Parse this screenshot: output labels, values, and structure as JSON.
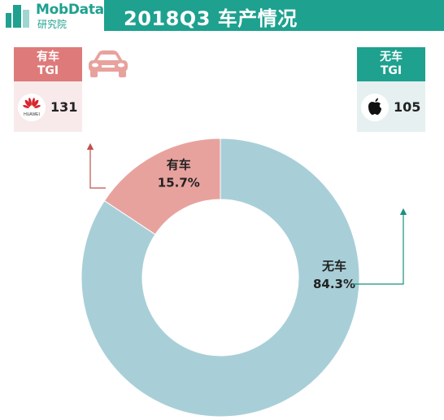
{
  "header": {
    "logo_brand": "MobData",
    "logo_sub": "研究院",
    "title": "2018Q3   车产情况"
  },
  "left_card": {
    "tag_line1": "有车",
    "tag_line2": "TGI",
    "brand_icon": "huawei-logo",
    "brand_text": "HUAWEI",
    "tgi_value": "131"
  },
  "right_card": {
    "tag_line1": "无车",
    "tag_line2": "TGI",
    "brand_icon": "apple-logo",
    "tgi_value": "105"
  },
  "colors": {
    "teal": "#1ea18f",
    "has_car": "#e8a29e",
    "no_car": "#a8cfd8",
    "tag_red": "#df7a7a"
  },
  "chart_data": {
    "type": "pie",
    "subtype": "donut",
    "title": "2018Q3   车产情况",
    "slices": [
      {
        "name": "有车",
        "value": 15.7,
        "label": "15.7%",
        "color": "#e8a29e"
      },
      {
        "name": "无车",
        "value": 84.3,
        "label": "84.3%",
        "color": "#a8cfd8"
      }
    ]
  }
}
